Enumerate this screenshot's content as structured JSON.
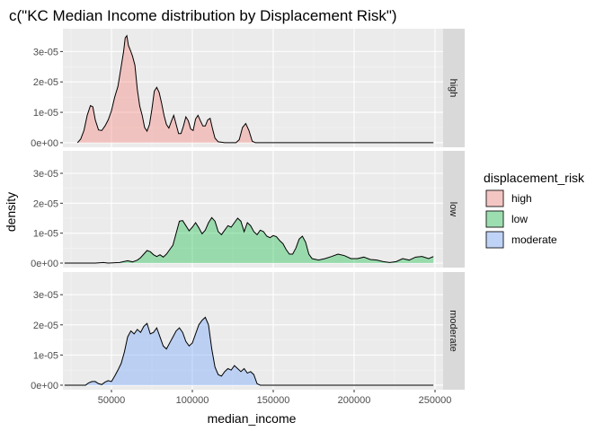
{
  "chart_data": {
    "type": "area",
    "title": "c(\"KC Median Income distribution by Displacement Risk\")",
    "xlabel": "median_income",
    "ylabel": "density",
    "xlim": [
      20000,
      255000
    ],
    "ylim": [
      -1.5e-06,
      3.75e-05
    ],
    "x_ticks": [
      50000,
      100000,
      150000,
      200000,
      250000
    ],
    "x_tick_labels": [
      "50000",
      "100000",
      "150000",
      "200000",
      "250000"
    ],
    "y_ticks": [
      0,
      1e-05,
      2e-05,
      3e-05
    ],
    "y_tick_labels": [
      "0e+00",
      "1e-05",
      "2e-05",
      "3e-05"
    ],
    "grid": true,
    "legend": {
      "title": "displacement_risk",
      "position": "right",
      "entries": [
        "high",
        "low",
        "moderate"
      ]
    },
    "series": [
      {
        "name": "high",
        "color": "#F8766D",
        "points": [
          [
            29000,
            0.0
          ],
          [
            31000,
            1.2e-06
          ],
          [
            33000,
            4e-06
          ],
          [
            35000,
            9e-06
          ],
          [
            37000,
            1.22e-05
          ],
          [
            38500,
            1.18e-05
          ],
          [
            40000,
            7.5e-06
          ],
          [
            42000,
            4.2e-06
          ],
          [
            44000,
            4e-06
          ],
          [
            46000,
            5.5e-06
          ],
          [
            48000,
            7.5e-06
          ],
          [
            50000,
            1.05e-05
          ],
          [
            52000,
            1.5e-05
          ],
          [
            54000,
            1.85e-05
          ],
          [
            56000,
            2.5e-05
          ],
          [
            57500,
            3e-05
          ],
          [
            58500,
            3.45e-05
          ],
          [
            59500,
            3.52e-05
          ],
          [
            60500,
            3.2e-05
          ],
          [
            62000,
            3e-05
          ],
          [
            63000,
            2.85e-05
          ],
          [
            64500,
            2.55e-05
          ],
          [
            66000,
            1.75e-05
          ],
          [
            67500,
            1.2e-05
          ],
          [
            69000,
            9e-06
          ],
          [
            70500,
            5e-06
          ],
          [
            72000,
            3.8e-06
          ],
          [
            73500,
            6e-06
          ],
          [
            75000,
            1.1e-05
          ],
          [
            76500,
            1.7e-05
          ],
          [
            78000,
            1.82e-05
          ],
          [
            79500,
            1.65e-05
          ],
          [
            81000,
            1.3e-05
          ],
          [
            82500,
            9e-06
          ],
          [
            84000,
            6e-06
          ],
          [
            85500,
            4.8e-06
          ],
          [
            87000,
            7e-06
          ],
          [
            88500,
            9e-06
          ],
          [
            90000,
            6e-06
          ],
          [
            91500,
            3e-06
          ],
          [
            93000,
            3e-06
          ],
          [
            94500,
            5.5e-06
          ],
          [
            96000,
            8.5e-06
          ],
          [
            97500,
            7.2e-06
          ],
          [
            99000,
            4.5e-06
          ],
          [
            100500,
            4e-06
          ],
          [
            102000,
            7.8e-06
          ],
          [
            103500,
            9e-06
          ],
          [
            105000,
            7.2e-06
          ],
          [
            106500,
            5.5e-06
          ],
          [
            108000,
            5.5e-06
          ],
          [
            109500,
            7.5e-06
          ],
          [
            111000,
            8e-06
          ],
          [
            112500,
            4.5e-06
          ],
          [
            114000,
            1.5e-06
          ],
          [
            116000,
            3e-07
          ],
          [
            120000,
            0.0
          ],
          [
            127000,
            0.0
          ],
          [
            129000,
            1e-06
          ],
          [
            131000,
            5e-06
          ],
          [
            133000,
            6.3e-06
          ],
          [
            135000,
            4e-06
          ],
          [
            137000,
            5e-07
          ],
          [
            139000,
            0.0
          ],
          [
            249000,
            0.0
          ]
        ]
      },
      {
        "name": "low",
        "color": "#00BA38",
        "points": [
          [
            21000,
            0.0
          ],
          [
            40000,
            0.0
          ],
          [
            45000,
            2e-07
          ],
          [
            48000,
            0.0
          ],
          [
            55000,
            2e-07
          ],
          [
            60000,
            8e-07
          ],
          [
            63000,
            4e-07
          ],
          [
            66000,
            1e-06
          ],
          [
            68000,
            1.8e-06
          ],
          [
            70000,
            3e-06
          ],
          [
            72000,
            4.2e-06
          ],
          [
            74000,
            3.8e-06
          ],
          [
            76000,
            2.8e-06
          ],
          [
            78000,
            2.2e-06
          ],
          [
            80000,
            2.8e-06
          ],
          [
            82000,
            2e-06
          ],
          [
            84000,
            3e-06
          ],
          [
            86000,
            4.5e-06
          ],
          [
            88000,
            6e-06
          ],
          [
            90000,
            1e-05
          ],
          [
            92000,
            1.4e-05
          ],
          [
            94000,
            1.42e-05
          ],
          [
            96000,
            1.25e-05
          ],
          [
            98000,
            1.08e-05
          ],
          [
            100000,
            1.2e-05
          ],
          [
            102000,
            1.35e-05
          ],
          [
            104000,
            1.18e-05
          ],
          [
            106000,
            9.8e-06
          ],
          [
            108000,
            1.1e-05
          ],
          [
            110000,
            1.35e-05
          ],
          [
            112000,
            1.52e-05
          ],
          [
            114000,
            1.4e-05
          ],
          [
            116000,
            1.05e-05
          ],
          [
            118000,
            9.5e-06
          ],
          [
            120000,
            1.1e-05
          ],
          [
            122000,
            1.25e-05
          ],
          [
            124000,
            1.2e-05
          ],
          [
            126000,
            1.35e-05
          ],
          [
            128000,
            1.5e-05
          ],
          [
            130000,
            1.4e-05
          ],
          [
            132000,
            1.05e-05
          ],
          [
            134000,
            1.35e-05
          ],
          [
            136000,
            1.25e-05
          ],
          [
            138000,
            1.05e-05
          ],
          [
            140000,
            9.5e-06
          ],
          [
            142000,
            1.1e-05
          ],
          [
            144000,
            1.05e-05
          ],
          [
            146000,
            9e-06
          ],
          [
            148000,
            8.5e-06
          ],
          [
            150000,
            9.2e-06
          ],
          [
            152000,
            8.8e-06
          ],
          [
            154000,
            7.5e-06
          ],
          [
            156000,
            6.5e-06
          ],
          [
            158000,
            4.5e-06
          ],
          [
            160000,
            3e-06
          ],
          [
            162000,
            3e-06
          ],
          [
            164000,
            5e-06
          ],
          [
            166000,
            8e-06
          ],
          [
            168000,
            9e-06
          ],
          [
            170000,
            7e-06
          ],
          [
            172000,
            3e-06
          ],
          [
            174000,
            1.5e-06
          ],
          [
            178000,
            1e-06
          ],
          [
            182000,
            1.5e-06
          ],
          [
            186000,
            2.2e-06
          ],
          [
            190000,
            3e-06
          ],
          [
            194000,
            2.5e-06
          ],
          [
            198000,
            1.5e-06
          ],
          [
            202000,
            1.5e-06
          ],
          [
            206000,
            2e-06
          ],
          [
            210000,
            1.2e-06
          ],
          [
            214000,
            1e-06
          ],
          [
            218000,
            5e-07
          ],
          [
            222000,
            2e-07
          ],
          [
            226000,
            5e-07
          ],
          [
            230000,
            1.5e-06
          ],
          [
            234000,
            1e-06
          ],
          [
            238000,
            2e-06
          ],
          [
            242000,
            2.2e-06
          ],
          [
            246000,
            1.5e-06
          ],
          [
            249000,
            2.2e-06
          ]
        ]
      },
      {
        "name": "moderate",
        "color": "#619CFF",
        "points": [
          [
            21000,
            0.0
          ],
          [
            34000,
            0.0
          ],
          [
            36000,
            8e-07
          ],
          [
            38000,
            1.2e-06
          ],
          [
            40000,
            1.2e-06
          ],
          [
            42000,
            5e-07
          ],
          [
            44000,
            2e-07
          ],
          [
            46000,
            1e-06
          ],
          [
            48000,
            1.5e-06
          ],
          [
            50000,
            1.2e-06
          ],
          [
            52000,
            3e-06
          ],
          [
            54000,
            5e-06
          ],
          [
            56000,
            7.2e-06
          ],
          [
            58000,
            1.1e-05
          ],
          [
            60000,
            1.6e-05
          ],
          [
            62000,
            1.8e-05
          ],
          [
            64000,
            1.7e-05
          ],
          [
            66000,
            1.85e-05
          ],
          [
            68000,
            1.75e-05
          ],
          [
            70000,
            1.95e-05
          ],
          [
            72000,
            2.05e-05
          ],
          [
            74000,
            1.7e-05
          ],
          [
            76000,
            1.75e-05
          ],
          [
            78000,
            1.9e-05
          ],
          [
            80000,
            1.6e-05
          ],
          [
            82000,
            1.3e-05
          ],
          [
            84000,
            1.2e-05
          ],
          [
            86000,
            1.4e-05
          ],
          [
            88000,
            1.6e-05
          ],
          [
            90000,
            1.8e-05
          ],
          [
            92000,
            1.9e-05
          ],
          [
            94000,
            1.75e-05
          ],
          [
            96000,
            1.45e-05
          ],
          [
            98000,
            1.3e-05
          ],
          [
            100000,
            1.4e-05
          ],
          [
            102000,
            1.7e-05
          ],
          [
            104000,
            2e-05
          ],
          [
            106000,
            2.15e-05
          ],
          [
            108000,
            2.25e-05
          ],
          [
            110000,
            2e-05
          ],
          [
            112000,
            1.2e-05
          ],
          [
            114000,
            6e-06
          ],
          [
            116000,
            3.5e-06
          ],
          [
            118000,
            3e-06
          ],
          [
            120000,
            4.5e-06
          ],
          [
            122000,
            5.5e-06
          ],
          [
            124000,
            5e-06
          ],
          [
            126000,
            6.5e-06
          ],
          [
            128000,
            5.5e-06
          ],
          [
            130000,
            4.5e-06
          ],
          [
            132000,
            5.5e-06
          ],
          [
            134000,
            4e-06
          ],
          [
            136000,
            4.5e-06
          ],
          [
            138000,
            3.5e-06
          ],
          [
            140000,
            5e-07
          ],
          [
            142000,
            0.0
          ],
          [
            249000,
            0.0
          ]
        ]
      }
    ]
  }
}
